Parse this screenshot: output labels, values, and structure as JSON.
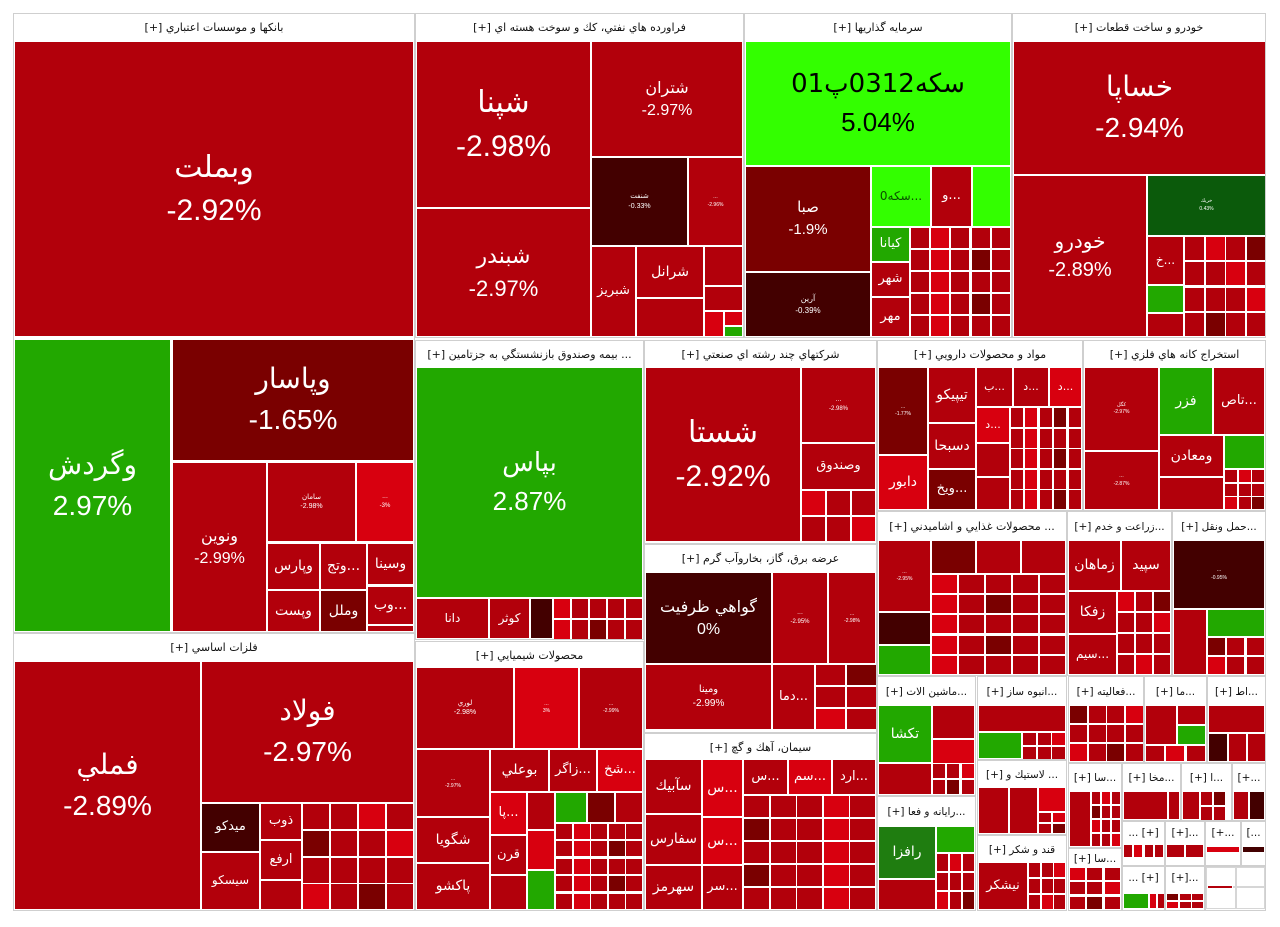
{
  "colors": {
    "R": "#b2000b",
    "B": "#d8000f",
    "D": "#7a0000",
    "K": "#430000",
    "G": "#22a800",
    "L": "#33ff00",
    "DG": "#0b5a0b",
    "MG": "#1f7d10",
    "W": "#ffffff"
  },
  "sectors": [
    {
      "title": "بانكها و موسسات اعتباري [+]",
      "tiles": [
        {
          "s": "وبملت",
          "c": "-2.92%",
          "k": "R"
        },
        {
          "s": "وگردش",
          "c": "2.97%",
          "k": "G"
        },
        {
          "s": "وپاسار",
          "c": "-1.65%",
          "k": "D"
        },
        {
          "s": "ونوين",
          "c": "-2.99%",
          "k": "R"
        },
        {
          "s": "سامان",
          "c": "-2.98%",
          "k": "R"
        },
        {
          "s": "...",
          "c": "-3%",
          "k": "B"
        },
        {
          "s": "وپارس",
          "c": "",
          "k": "R"
        },
        {
          "s": "...وتج",
          "c": "",
          "k": "R"
        },
        {
          "s": "وسينا",
          "c": "",
          "k": "R"
        },
        {
          "s": "وپست",
          "c": "",
          "k": "R"
        },
        {
          "s": "وملل",
          "c": "",
          "k": "D"
        },
        {
          "s": "...وب",
          "c": "",
          "k": "R"
        }
      ]
    },
    {
      "title": "فلزات اساسي [+]",
      "tiles": [
        {
          "s": "فملي",
          "c": "-2.89%",
          "k": "R"
        },
        {
          "s": "فولاد",
          "c": "-2.97%",
          "k": "R"
        },
        {
          "s": "ميدكو",
          "c": "",
          "k": "K"
        },
        {
          "s": "ذوب",
          "c": "",
          "k": "R"
        },
        {
          "s": "ارفع",
          "c": "",
          "k": "R"
        },
        {
          "s": "سيسكو",
          "c": "",
          "k": "R"
        }
      ]
    },
    {
      "title": "فراورده هاي نفتي، كك و سوخت هسته اي [+]",
      "tiles": [
        {
          "s": "شپنا",
          "c": "-2.98%",
          "k": "R"
        },
        {
          "s": "شتران",
          "c": "-2.97%",
          "k": "R"
        },
        {
          "s": "شبندر",
          "c": "-2.97%",
          "k": "R"
        },
        {
          "s": "شنفت",
          "c": "-0.33%",
          "k": "K"
        },
        {
          "s": "...",
          "c": "-2.96%",
          "k": "R"
        },
        {
          "s": "شبريز",
          "c": "",
          "k": "R"
        },
        {
          "s": "شرانل",
          "c": "",
          "k": "R"
        }
      ]
    },
    {
      "title": "سرمايه گذاريها [+]",
      "tiles": [
        {
          "s": "سكه0312پ01",
          "c": "5.04%",
          "k": "L",
          "fg": "#000000"
        },
        {
          "s": "صبا",
          "c": "-1.9%",
          "k": "D"
        },
        {
          "s": "آرين",
          "c": "-0.39%",
          "k": "K"
        },
        {
          "s": "...سكه0",
          "c": "",
          "k": "L",
          "fg": "#0a5000"
        },
        {
          "s": "...و",
          "c": "",
          "k": "R"
        },
        {
          "s": "كيانا",
          "c": "",
          "k": "G"
        },
        {
          "s": "شهر",
          "c": "",
          "k": "R"
        },
        {
          "s": "مهر",
          "c": "",
          "k": "R"
        }
      ]
    },
    {
      "title": "خودرو و ساخت قطعات [+]",
      "tiles": [
        {
          "s": "خساپا",
          "c": "-2.94%",
          "k": "R"
        },
        {
          "s": "خودرو",
          "c": "-2.89%",
          "k": "R"
        },
        {
          "s": "خريك",
          "c": "0.43%",
          "k": "DG"
        },
        {
          "s": "...خ",
          "c": "",
          "k": "R"
        }
      ]
    },
    {
      "title": "... بيمه وصندوق بازنشستگي به جزتامين [+]",
      "tiles": [
        {
          "s": "بپاس",
          "c": "2.87%",
          "k": "G"
        },
        {
          "s": "دانا",
          "c": "",
          "k": "R"
        },
        {
          "s": "كوثر",
          "c": "",
          "k": "R"
        }
      ]
    },
    {
      "title": "شركتهاي چند رشته اي صنعتي [+]",
      "tiles": [
        {
          "s": "شستا",
          "c": "-2.92%",
          "k": "R"
        },
        {
          "s": "...",
          "c": "-2.98%",
          "k": "R"
        },
        {
          "s": "وصندوق",
          "c": "",
          "k": "R"
        }
      ]
    },
    {
      "title": "عرضه برق، گاز، بخاروآب گرم [+]",
      "tiles": [
        {
          "s": "گواهي ظرفيت",
          "c": "0%",
          "k": "K"
        },
        {
          "s": "...",
          "c": "-2.95%",
          "k": "R"
        },
        {
          "s": "...",
          "c": "-2.98%",
          "k": "R"
        },
        {
          "s": "ومينا",
          "c": "-2.99%",
          "k": "R"
        },
        {
          "s": "...دما",
          "c": "",
          "k": "R"
        }
      ]
    },
    {
      "title": "سيمان، آهك و گچ [+]",
      "tiles": [
        {
          "s": "سآبيك",
          "c": "",
          "k": "R"
        },
        {
          "s": "...س",
          "c": "",
          "k": "B"
        },
        {
          "s": "...س",
          "c": "",
          "k": "R"
        },
        {
          "s": "...سم",
          "c": "",
          "k": "B"
        },
        {
          "s": "...ارد",
          "c": "",
          "k": "R"
        },
        {
          "s": "سفارس",
          "c": "",
          "k": "R"
        },
        {
          "s": "...س",
          "c": "",
          "k": "B"
        },
        {
          "s": "سهرمز",
          "c": "",
          "k": "R"
        },
        {
          "s": "...سر",
          "c": "",
          "k": "R"
        }
      ]
    },
    {
      "title": "محصولات شيميايي [+]",
      "tiles": [
        {
          "s": "لوري",
          "c": "-2.98%",
          "k": "R"
        },
        {
          "s": "...",
          "c": "3%",
          "k": "B"
        },
        {
          "s": "...",
          "c": "-2.99%",
          "k": "R"
        },
        {
          "s": "...",
          "c": "-2.97%",
          "k": "R"
        },
        {
          "s": "بوعلي",
          "c": "",
          "k": "R"
        },
        {
          "s": "...زاگر",
          "c": "",
          "k": "R"
        },
        {
          "s": "...شخ",
          "c": "",
          "k": "B"
        },
        {
          "s": "شگويا",
          "c": "",
          "k": "R"
        },
        {
          "s": "پاكشو",
          "c": "",
          "k": "R"
        },
        {
          "s": "...پا",
          "c": "",
          "k": "B"
        },
        {
          "s": "قرن",
          "c": "",
          "k": "R"
        }
      ]
    },
    {
      "title": "مواد و محصولات دارويي [+]",
      "tiles": [
        {
          "s": "...",
          "c": "-1.77%",
          "k": "D"
        },
        {
          "s": "دابور",
          "c": "",
          "k": "B"
        },
        {
          "s": "تيپيكو",
          "c": "",
          "k": "R"
        },
        {
          "s": "دسبحا",
          "c": "",
          "k": "R"
        },
        {
          "s": "...ويخ",
          "c": "",
          "k": "D"
        },
        {
          "s": "...ب",
          "c": "",
          "k": "R"
        },
        {
          "s": "...د",
          "c": "",
          "k": "R"
        },
        {
          "s": "...د",
          "c": "",
          "k": "B"
        },
        {
          "s": "...د",
          "c": "",
          "k": "B"
        }
      ]
    },
    {
      "title": "استخراج كانه هاي فلزي [+]",
      "tiles": [
        {
          "s": "كگل",
          "c": "-2.97%",
          "k": "R"
        },
        {
          "s": "...",
          "c": "-2.87%",
          "k": "R"
        },
        {
          "s": "فزر",
          "c": "",
          "k": "G"
        },
        {
          "s": "...تاص",
          "c": "",
          "k": "R"
        },
        {
          "s": "ومعادن",
          "c": "",
          "k": "R"
        }
      ]
    },
    {
      "title": "... محصولات غذايي و اشاميدني [+]",
      "tiles": [
        {
          "s": "...",
          "c": "-2.95%",
          "k": "R"
        }
      ]
    },
    {
      "title": "...زراعت و خدم [+]",
      "tiles": [
        {
          "s": "زماهان",
          "c": "",
          "k": "R"
        },
        {
          "s": "سپيد",
          "c": "",
          "k": "R"
        },
        {
          "s": "زفكا",
          "c": "",
          "k": "R"
        },
        {
          "s": "...سيم",
          "c": "",
          "k": "R"
        }
      ]
    },
    {
      "title": "...حمل ونقل [+]",
      "tiles": [
        {
          "s": "...",
          "c": "-0.95%",
          "k": "K"
        }
      ]
    },
    {
      "title": "...ماشين الات [+]",
      "tiles": [
        {
          "s": "تكشا",
          "c": "",
          "k": "G"
        }
      ]
    },
    {
      "title": "...رايانه و فعا [+]",
      "tiles": [
        {
          "s": "رافزا",
          "c": "",
          "k": "MG"
        }
      ]
    },
    {
      "title": "...انبوه ساز [+]",
      "tiles": []
    },
    {
      "title": "... لاستيك و [+]",
      "tiles": []
    },
    {
      "title": "قند و شكر [+]",
      "tiles": [
        {
          "s": "نيشكر",
          "c": "",
          "k": "R"
        }
      ]
    },
    {
      "title": "...فعاليته [+]",
      "tiles": []
    },
    {
      "title": "...ما [+]",
      "tiles": []
    },
    {
      "title": "...اط [+]",
      "tiles": []
    },
    {
      "title": "...سا [+]",
      "tiles": []
    },
    {
      "title": "...مخا [+]",
      "tiles": []
    },
    {
      "title": "...ا [+]",
      "tiles": []
    },
    {
      "title": "[+...",
      "tiles": []
    },
    {
      "title": "...سا [+]",
      "tiles": []
    },
    {
      "title": "... [+]",
      "tiles": []
    },
    {
      "title": "[+]...",
      "tiles": []
    },
    {
      "title": "[+...",
      "tiles": []
    },
    {
      "title": "[...",
      "tiles": []
    },
    {
      "title": "... [+]",
      "tiles": []
    },
    {
      "title": "[+]...",
      "tiles": []
    },
    {
      "title": "",
      "tiles": []
    }
  ]
}
